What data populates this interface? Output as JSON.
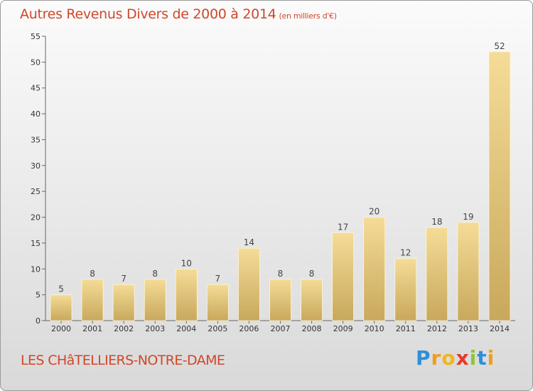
{
  "header": {
    "title": "Autres Revenus Divers de 2000 à 2014",
    "unit": "(en milliers d'€)"
  },
  "footer": {
    "commune": "LES CHâTELLIERS-NOTRE-DAME",
    "logo_letters": [
      "P",
      "r",
      "o",
      "x",
      "i",
      "t",
      "i"
    ],
    "logo_colors": [
      "#2e8fd8",
      "#f29c1c",
      "#f2b51c",
      "#e8392a",
      "#8fc43a",
      "#2e8fd8",
      "#f29c1c"
    ]
  },
  "colors": {
    "bar_top": "#f5dc97",
    "bar_bottom": "#c8a85c",
    "title": "#d0472a"
  },
  "chart_data": {
    "type": "bar",
    "title": "Autres Revenus Divers de 2000 à 2014",
    "categories": [
      "2000",
      "2001",
      "2002",
      "2003",
      "2004",
      "2005",
      "2006",
      "2007",
      "2008",
      "2009",
      "2010",
      "2011",
      "2012",
      "2013",
      "2014"
    ],
    "values": [
      5,
      8,
      7,
      8,
      10,
      7,
      14,
      8,
      8,
      17,
      20,
      12,
      18,
      19,
      52
    ],
    "ylim": [
      0,
      55
    ],
    "yticks": [
      0,
      5,
      10,
      15,
      20,
      25,
      30,
      35,
      40,
      45,
      50,
      55
    ],
    "grid": false,
    "xlabel": "",
    "ylabel": ""
  }
}
